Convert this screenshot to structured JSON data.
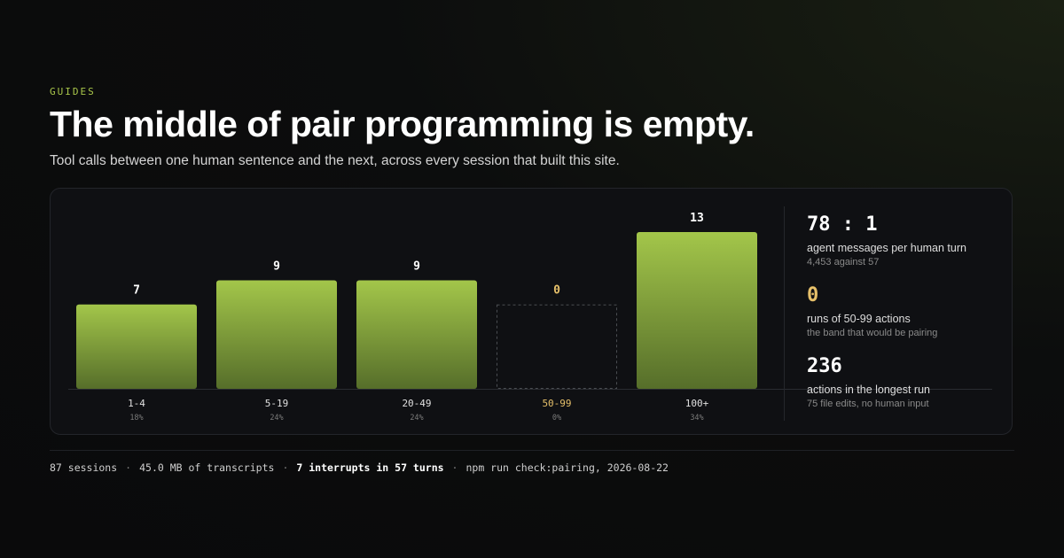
{
  "header": {
    "eyebrow": "GUIDES",
    "title": "The middle of pair programming is empty.",
    "subtitle": "Tool calls between one human sentence and the next, across every session that built this site."
  },
  "chart_data": {
    "type": "bar",
    "categories": [
      "1-4",
      "5-19",
      "20-49",
      "50-99",
      "100+"
    ],
    "values": [
      7,
      9,
      9,
      0,
      13
    ],
    "value_labels": [
      "7",
      "9",
      "9",
      "0",
      "13"
    ],
    "percent_labels": [
      "18%",
      "24%",
      "24%",
      "0%",
      "34%"
    ],
    "highlight_category": "50-99",
    "ylim": [
      0,
      13
    ],
    "grid": false,
    "colors": {
      "bar_top": "#a3c64a",
      "bar_bottom": "#566e2a",
      "highlight": "#e6c06a",
      "empty_outline": "#4a4d52",
      "axis": "#2a2c31"
    }
  },
  "stats": [
    {
      "big": "78 : 1",
      "label": "agent messages per human turn",
      "sub": "4,453 against 57",
      "accent": false
    },
    {
      "big": "0",
      "label": "runs of 50-99 actions",
      "sub": "the band that would be pairing",
      "accent": true
    },
    {
      "big": "236",
      "label": "actions in the longest run",
      "sub": "75 file edits, no human input",
      "accent": false
    }
  ],
  "footer": {
    "sessions": "87 sessions",
    "transcripts": "45.0 MB of transcripts",
    "interrupts": "7 interrupts in 57 turns",
    "command": "npm run check:pairing, 2026-08-22"
  }
}
